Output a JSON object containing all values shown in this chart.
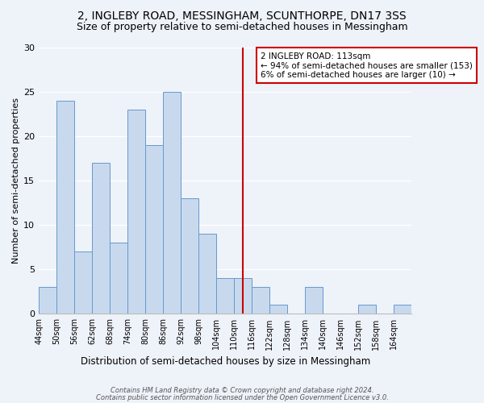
{
  "title": "2, INGLEBY ROAD, MESSINGHAM, SCUNTHORPE, DN17 3SS",
  "subtitle": "Size of property relative to semi-detached houses in Messingham",
  "xlabel": "Distribution of semi-detached houses by size in Messingham",
  "ylabel": "Number of semi-detached properties",
  "footer_line1": "Contains HM Land Registry data © Crown copyright and database right 2024.",
  "footer_line2": "Contains public sector information licensed under the Open Government Licence v3.0.",
  "bin_labels": [
    "44sqm",
    "50sqm",
    "56sqm",
    "62sqm",
    "68sqm",
    "74sqm",
    "80sqm",
    "86sqm",
    "92sqm",
    "98sqm",
    "104sqm",
    "110sqm",
    "116sqm",
    "122sqm",
    "128sqm",
    "134sqm",
    "140sqm",
    "146sqm",
    "152sqm",
    "158sqm",
    "164sqm"
  ],
  "bin_edges": [
    44,
    50,
    56,
    62,
    68,
    74,
    80,
    86,
    92,
    98,
    104,
    110,
    116,
    122,
    128,
    134,
    140,
    146,
    152,
    158,
    164,
    170
  ],
  "counts": [
    3,
    24,
    7,
    17,
    8,
    23,
    19,
    25,
    13,
    9,
    4,
    4,
    3,
    1,
    0,
    3,
    0,
    0,
    1,
    0,
    1
  ],
  "bar_color": "#c8d9ee",
  "bar_edge_color": "#6699cc",
  "property_size": 113,
  "vline_color": "#cc0000",
  "annotation_title": "2 INGLEBY ROAD: 113sqm",
  "annotation_line1": "← 94% of semi-detached houses are smaller (153)",
  "annotation_line2": "6% of semi-detached houses are larger (10) →",
  "annotation_box_edge_color": "#cc0000",
  "annotation_box_face_color": "#ffffff",
  "ylim": [
    0,
    30
  ],
  "yticks": [
    0,
    5,
    10,
    15,
    20,
    25,
    30
  ],
  "background_color": "#eef2f9",
  "grid_color": "#ffffff",
  "title_fontsize": 10,
  "subtitle_fontsize": 9
}
